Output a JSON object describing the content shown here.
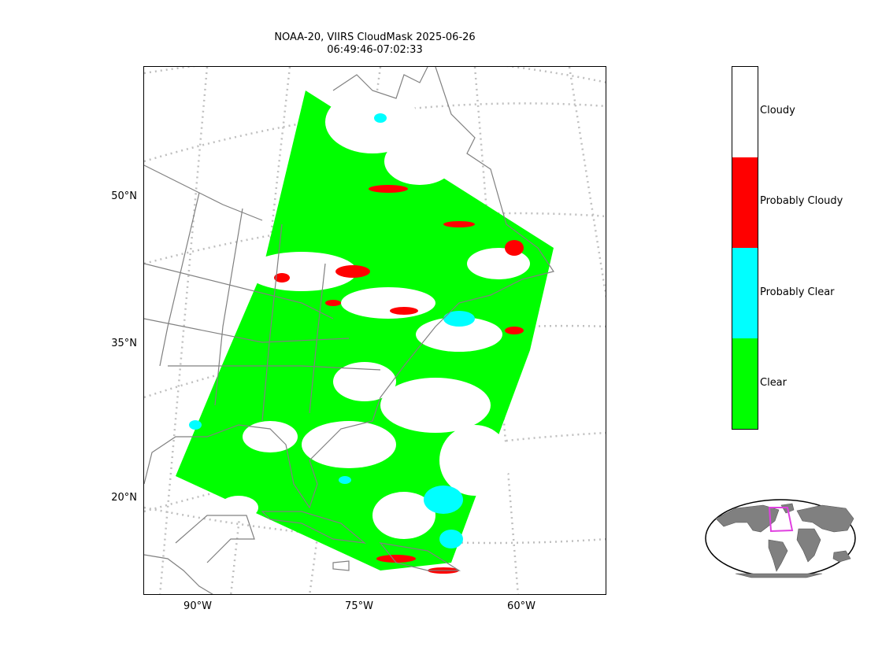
{
  "title": {
    "line1": "NOAA-20, VIIRS CloudMask 2025-06-26",
    "line2": "06:49:46-07:02:33"
  },
  "lat_labels": [
    "50°N",
    "35°N",
    "20°N"
  ],
  "lon_labels": [
    "90°W",
    "75°W",
    "60°W"
  ],
  "legend": {
    "items": [
      {
        "label": "Cloudy",
        "color": "#ffffff"
      },
      {
        "label": "Probably Cloudy",
        "color": "#ff0000"
      },
      {
        "label": "Probably Clear",
        "color": "#00ffff"
      },
      {
        "label": "Clear",
        "color": "#00ff00"
      }
    ]
  },
  "colors": {
    "coastline": "#808080",
    "graticule": "#bfbfbf",
    "inset_box": "#e040e0",
    "land_inset": "#808080"
  }
}
